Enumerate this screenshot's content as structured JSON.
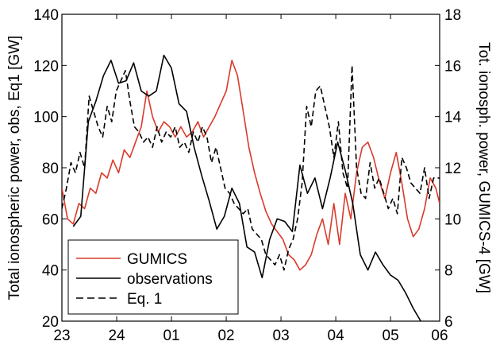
{
  "chart_data": {
    "type": "line",
    "ylabel_left": "Total ionospheric power, obs, Eq1 [GW]",
    "ylabel_right": "Tot. ionosph. power, GUMICS-4 [GW]",
    "ylim_left": [
      20,
      140
    ],
    "ylim_right": [
      6,
      18
    ],
    "yticks_left": [
      20,
      40,
      60,
      80,
      100,
      120,
      140
    ],
    "yticks_right": [
      6,
      8,
      10,
      12,
      14,
      16,
      18
    ],
    "xlim": [
      0,
      10
    ],
    "xticks": [
      0,
      2,
      4,
      6,
      8,
      10
    ],
    "xtick_labels": [
      "23",
      "24",
      "01",
      "02",
      "03",
      "04",
      "05",
      "06"
    ],
    "xtick_positions": [
      0,
      1.45,
      2.9,
      4.35,
      5.8,
      7.25,
      8.7,
      10
    ],
    "legend_position": "bottom-left",
    "grid": false,
    "series": [
      {
        "name": "GUMICS",
        "color": "#d93a2b",
        "dash": "solid",
        "axis": "right",
        "x": [
          0,
          0.15,
          0.3,
          0.45,
          0.6,
          0.75,
          0.9,
          1.05,
          1.2,
          1.35,
          1.5,
          1.65,
          1.8,
          1.95,
          2.1,
          2.25,
          2.4,
          2.55,
          2.7,
          2.85,
          3.0,
          3.15,
          3.3,
          3.45,
          3.6,
          3.75,
          3.9,
          4.05,
          4.2,
          4.35,
          4.5,
          4.65,
          4.8,
          4.95,
          5.1,
          5.25,
          5.4,
          5.55,
          5.7,
          5.85,
          6.0,
          6.15,
          6.3,
          6.45,
          6.6,
          6.75,
          6.9,
          7.05,
          7.2,
          7.35,
          7.5,
          7.65,
          7.8,
          7.95,
          8.1,
          8.25,
          8.4,
          8.55,
          8.7,
          8.85,
          9.0,
          9.15,
          9.3,
          9.45,
          9.6,
          9.75,
          9.9,
          10
        ],
        "y": [
          11.2,
          10.0,
          9.8,
          10.6,
          10.4,
          11.2,
          11.0,
          11.8,
          11.6,
          12.3,
          11.8,
          12.7,
          12.4,
          13.0,
          13.6,
          15.0,
          14.0,
          13.4,
          13.8,
          13.6,
          13.2,
          13.6,
          13.2,
          13.4,
          13.8,
          13.2,
          13.6,
          14.0,
          14.5,
          15.0,
          16.2,
          15.6,
          14.2,
          12.8,
          11.8,
          11.0,
          10.3,
          9.8,
          9.5,
          9.2,
          8.6,
          8.4,
          8.0,
          8.2,
          8.6,
          9.4,
          10.0,
          9.0,
          10.6,
          9.0,
          11.0,
          10.0,
          11.8,
          12.8,
          13.0,
          12.4,
          11.5,
          10.8,
          11.8,
          12.6,
          11.4,
          10.0,
          9.3,
          9.6,
          10.4,
          11.6,
          11.2,
          10.6
        ]
      },
      {
        "name": "observations",
        "color": "#000000",
        "dash": "solid",
        "axis": "left",
        "x": [
          0.3,
          0.5,
          0.7,
          0.9,
          1.1,
          1.3,
          1.5,
          1.7,
          1.9,
          2.1,
          2.3,
          2.5,
          2.7,
          2.9,
          3.1,
          3.3,
          3.5,
          3.7,
          3.9,
          4.1,
          4.3,
          4.5,
          4.7,
          4.9,
          5.1,
          5.3,
          5.5,
          5.7,
          5.9,
          6.1,
          6.3,
          6.5,
          6.7,
          6.9,
          7.1,
          7.3,
          7.5,
          7.7,
          7.9,
          8.1,
          8.3,
          8.5,
          8.7,
          8.9,
          9.1,
          9.3,
          9.5
        ],
        "y": [
          57,
          61,
          98,
          106,
          116,
          122,
          113,
          114,
          121,
          110,
          108,
          110,
          124,
          119,
          105,
          102,
          88,
          77,
          67,
          56,
          61,
          72,
          66,
          49,
          47,
          37,
          52,
          60,
          59,
          55,
          81,
          70,
          76,
          64,
          76,
          90,
          79,
          66,
          46,
          40,
          47,
          42,
          38,
          36,
          31,
          25,
          20
        ]
      },
      {
        "name": "Eq. 1",
        "color": "#000000",
        "dash": "dashed",
        "axis": "left",
        "x": [
          0,
          0.12,
          0.24,
          0.36,
          0.48,
          0.6,
          0.72,
          0.84,
          0.96,
          1.08,
          1.2,
          1.32,
          1.44,
          1.56,
          1.68,
          1.8,
          1.92,
          2.04,
          2.16,
          2.28,
          2.4,
          2.52,
          2.64,
          2.76,
          2.88,
          3.0,
          3.12,
          3.24,
          3.36,
          3.48,
          3.6,
          3.72,
          3.84,
          3.96,
          4.08,
          4.2,
          4.32,
          4.44,
          4.56,
          4.68,
          4.8,
          4.92,
          5.04,
          5.16,
          5.28,
          5.4,
          5.52,
          5.64,
          5.76,
          5.88,
          6.0,
          6.12,
          6.24,
          6.36,
          6.48,
          6.6,
          6.72,
          6.84,
          6.96,
          7.08,
          7.2,
          7.32,
          7.44,
          7.56,
          7.68,
          7.8,
          7.92,
          8.04,
          8.16,
          8.28,
          8.4,
          8.52,
          8.64,
          8.76,
          8.88,
          9.0,
          9.12,
          9.24,
          9.36,
          9.48,
          9.6,
          9.72,
          9.84,
          10
        ],
        "y": [
          64,
          72,
          82,
          78,
          86,
          80,
          108,
          102,
          96,
          92,
          104,
          98,
          110,
          114,
          118,
          106,
          96,
          94,
          90,
          92,
          88,
          96,
          90,
          94,
          92,
          96,
          88,
          90,
          86,
          94,
          90,
          96,
          92,
          82,
          88,
          80,
          72,
          70,
          66,
          64,
          62,
          64,
          56,
          54,
          52,
          46,
          44,
          42,
          46,
          40,
          48,
          52,
          60,
          74,
          104,
          96,
          110,
          112,
          104,
          96,
          84,
          98,
          78,
          72,
          120,
          80,
          70,
          68,
          82,
          72,
          76,
          70,
          64,
          68,
          62,
          84,
          80,
          74,
          72,
          70,
          80,
          68,
          76,
          76
        ]
      }
    ]
  }
}
